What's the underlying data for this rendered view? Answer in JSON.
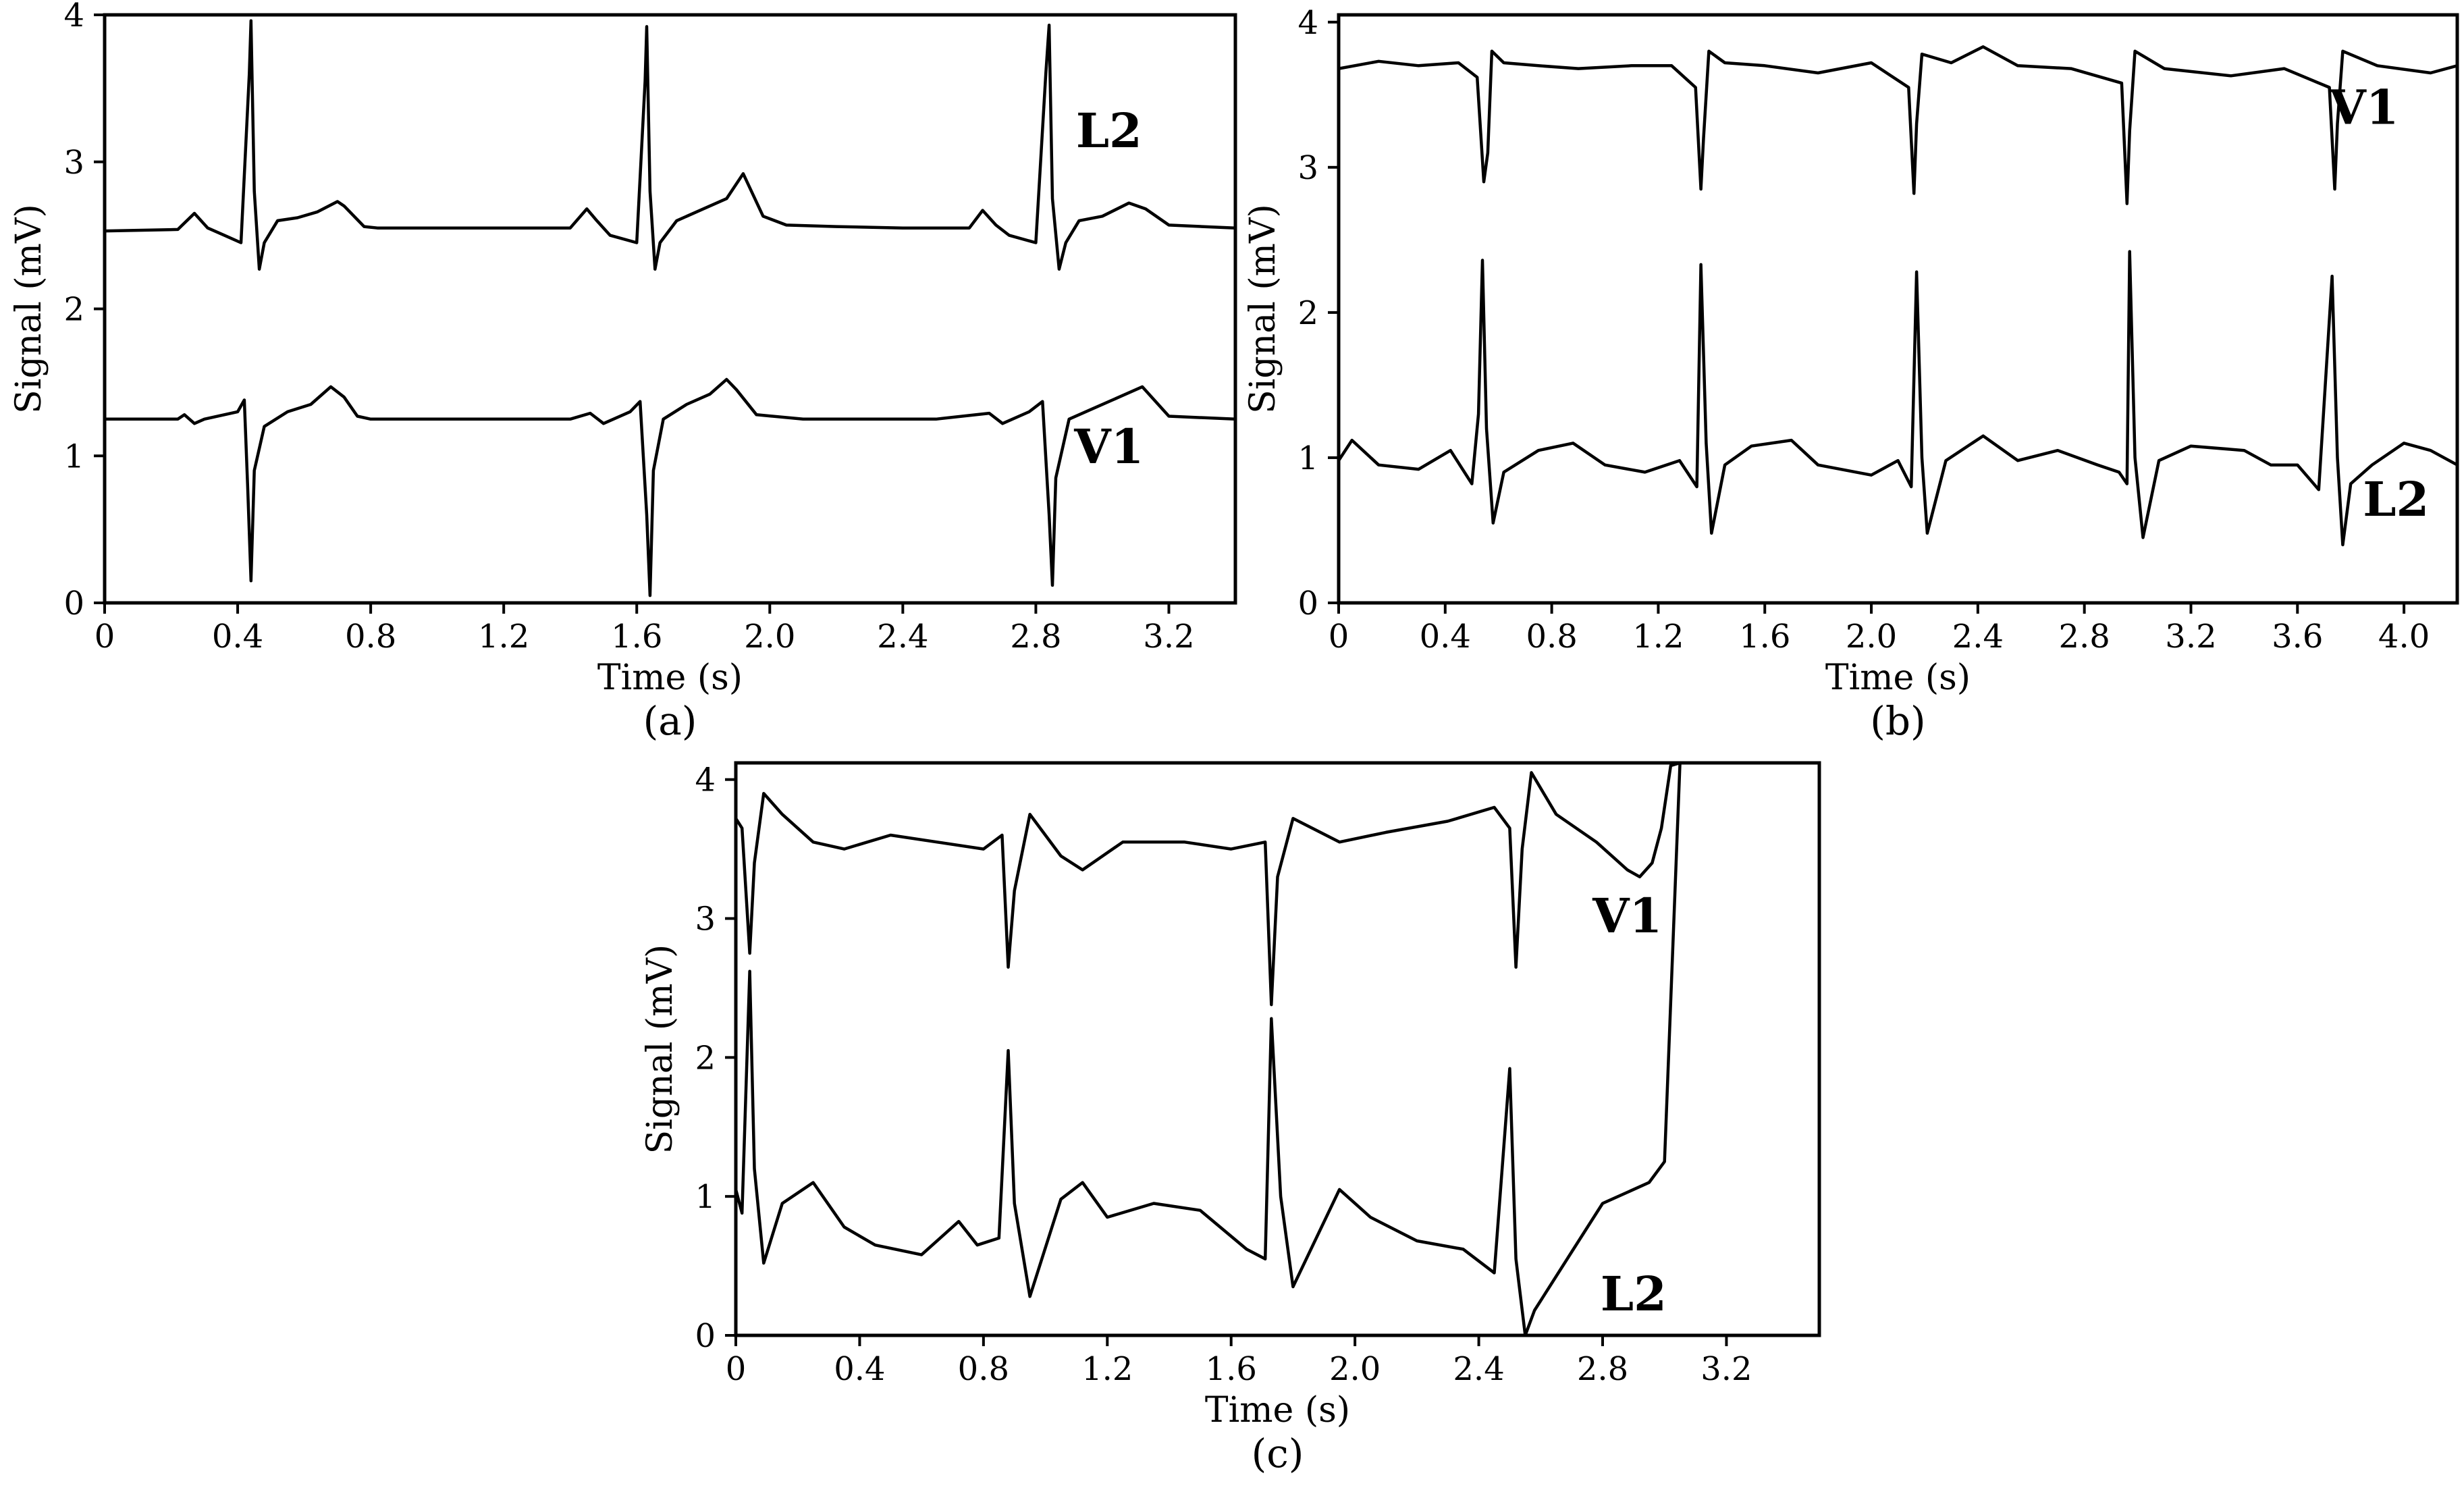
{
  "chart_data": [
    {
      "type": "line",
      "panel_label": "(a)",
      "xlabel": "Time (s)",
      "ylabel": "Signal (mV)",
      "xlim": [
        0,
        3.4
      ],
      "ylim": [
        0,
        4
      ],
      "x_ticks": [
        "0",
        "0.4",
        "0.8",
        "1.2",
        "1.6",
        "2.0",
        "2.4",
        "2.8",
        "3.2"
      ],
      "x_tick_values": [
        0,
        0.4,
        0.8,
        1.2,
        1.6,
        2.0,
        2.4,
        2.8,
        3.2
      ],
      "y_ticks": [
        "0",
        "1",
        "2",
        "3",
        "4"
      ],
      "y_tick_values": [
        0,
        1,
        2,
        3,
        4
      ],
      "series": [
        {
          "name": "L2",
          "label_at": [
            3.02,
            3.1
          ],
          "x": [
            0,
            0.22,
            0.27,
            0.31,
            0.36,
            0.41,
            0.435,
            0.44,
            0.45,
            0.465,
            0.48,
            0.52,
            0.58,
            0.64,
            0.7,
            0.72,
            0.78,
            0.82,
            1.0,
            1.2,
            1.4,
            1.45,
            1.48,
            1.52,
            1.6,
            1.625,
            1.63,
            1.64,
            1.655,
            1.67,
            1.72,
            1.8,
            1.87,
            1.92,
            1.98,
            2.05,
            2.2,
            2.4,
            2.6,
            2.64,
            2.68,
            2.72,
            2.8,
            2.83,
            2.84,
            2.85,
            2.87,
            2.89,
            2.93,
            3.0,
            3.08,
            3.13,
            3.2,
            3.3,
            3.4
          ],
          "y": [
            2.53,
            2.54,
            2.65,
            2.55,
            2.5,
            2.45,
            3.6,
            3.96,
            2.8,
            2.27,
            2.45,
            2.6,
            2.62,
            2.66,
            2.73,
            2.7,
            2.56,
            2.55,
            2.55,
            2.55,
            2.55,
            2.68,
            2.6,
            2.5,
            2.45,
            3.55,
            3.92,
            2.8,
            2.27,
            2.45,
            2.6,
            2.68,
            2.75,
            2.92,
            2.63,
            2.57,
            2.56,
            2.55,
            2.55,
            2.67,
            2.57,
            2.5,
            2.45,
            3.6,
            3.93,
            2.75,
            2.27,
            2.45,
            2.6,
            2.63,
            2.72,
            2.68,
            2.57,
            2.56,
            2.55
          ]
        },
        {
          "name": "V1",
          "label_at": [
            3.02,
            0.95
          ],
          "x": [
            0,
            0.22,
            0.24,
            0.27,
            0.3,
            0.4,
            0.42,
            0.43,
            0.44,
            0.45,
            0.48,
            0.55,
            0.62,
            0.68,
            0.72,
            0.76,
            0.8,
            1.0,
            1.2,
            1.4,
            1.46,
            1.5,
            1.58,
            1.61,
            1.63,
            1.64,
            1.65,
            1.68,
            1.75,
            1.82,
            1.87,
            1.9,
            1.96,
            2.1,
            2.3,
            2.5,
            2.66,
            2.7,
            2.78,
            2.82,
            2.84,
            2.85,
            2.86,
            2.9,
            2.97,
            3.05,
            3.12,
            3.2,
            3.4
          ],
          "y": [
            1.25,
            1.25,
            1.28,
            1.22,
            1.25,
            1.3,
            1.38,
            0.8,
            0.15,
            0.9,
            1.2,
            1.3,
            1.35,
            1.47,
            1.4,
            1.27,
            1.25,
            1.25,
            1.25,
            1.25,
            1.29,
            1.22,
            1.3,
            1.37,
            0.6,
            0.05,
            0.9,
            1.25,
            1.35,
            1.42,
            1.52,
            1.45,
            1.28,
            1.25,
            1.25,
            1.25,
            1.29,
            1.22,
            1.3,
            1.37,
            0.6,
            0.12,
            0.85,
            1.25,
            1.32,
            1.4,
            1.47,
            1.27,
            1.25
          ]
        }
      ]
    },
    {
      "type": "line",
      "panel_label": "(b)",
      "xlabel": "Time (s)",
      "ylabel": "Signal (mV)",
      "xlim": [
        0,
        4.2
      ],
      "ylim": [
        0,
        4.05
      ],
      "x_ticks": [
        "0",
        "0.4",
        "0.8",
        "1.2",
        "1.6",
        "2.0",
        "2.4",
        "2.8",
        "3.2",
        "3.6",
        "4.0"
      ],
      "x_tick_values": [
        0,
        0.4,
        0.8,
        1.2,
        1.6,
        2.0,
        2.4,
        2.8,
        3.2,
        3.6,
        4.0
      ],
      "y_ticks": [
        "0",
        "1",
        "2",
        "3",
        "4"
      ],
      "y_tick_values": [
        0,
        1,
        2,
        3,
        4
      ],
      "series": [
        {
          "name": "V1",
          "label_at": [
            3.85,
            3.3
          ],
          "x": [
            0,
            0.15,
            0.3,
            0.45,
            0.52,
            0.545,
            0.56,
            0.575,
            0.62,
            0.75,
            0.9,
            1.1,
            1.25,
            1.34,
            1.36,
            1.37,
            1.39,
            1.45,
            1.6,
            1.8,
            2.0,
            2.14,
            2.16,
            2.17,
            2.19,
            2.3,
            2.42,
            2.55,
            2.75,
            2.94,
            2.96,
            2.97,
            2.99,
            3.1,
            3.35,
            3.55,
            3.72,
            3.74,
            3.75,
            3.77,
            3.9,
            4.1,
            4.2
          ],
          "y": [
            3.68,
            3.73,
            3.7,
            3.72,
            3.62,
            2.9,
            3.1,
            3.8,
            3.72,
            3.7,
            3.68,
            3.7,
            3.7,
            3.55,
            2.85,
            3.2,
            3.8,
            3.72,
            3.7,
            3.65,
            3.72,
            3.55,
            2.82,
            3.3,
            3.78,
            3.72,
            3.83,
            3.7,
            3.68,
            3.58,
            2.75,
            3.25,
            3.8,
            3.68,
            3.63,
            3.68,
            3.55,
            2.85,
            3.3,
            3.8,
            3.7,
            3.65,
            3.7
          ]
        },
        {
          "name": "L2",
          "label_at": [
            3.97,
            0.6
          ],
          "x": [
            0,
            0.05,
            0.15,
            0.3,
            0.42,
            0.5,
            0.525,
            0.54,
            0.555,
            0.58,
            0.62,
            0.75,
            0.88,
            1.0,
            1.15,
            1.28,
            1.345,
            1.36,
            1.38,
            1.4,
            1.45,
            1.55,
            1.7,
            1.8,
            2.0,
            2.1,
            2.15,
            2.17,
            2.19,
            2.21,
            2.28,
            2.42,
            2.55,
            2.7,
            2.85,
            2.93,
            2.96,
            2.97,
            2.99,
            3.02,
            3.08,
            3.2,
            3.4,
            3.5,
            3.6,
            3.68,
            3.73,
            3.75,
            3.77,
            3.8,
            3.88,
            4.0,
            4.1,
            4.2
          ],
          "y": [
            0.98,
            1.12,
            0.95,
            0.92,
            1.05,
            0.82,
            1.3,
            2.36,
            1.2,
            0.55,
            0.9,
            1.05,
            1.1,
            0.95,
            0.9,
            0.98,
            0.8,
            2.33,
            1.1,
            0.48,
            0.95,
            1.08,
            1.12,
            0.95,
            0.88,
            0.98,
            0.8,
            2.28,
            1.0,
            0.48,
            0.98,
            1.15,
            0.98,
            1.05,
            0.95,
            0.9,
            0.82,
            2.42,
            1.0,
            0.45,
            0.98,
            1.08,
            1.05,
            0.95,
            0.95,
            0.78,
            2.25,
            1.0,
            0.4,
            0.82,
            0.95,
            1.1,
            1.05,
            0.95
          ]
        }
      ]
    },
    {
      "type": "line",
      "panel_label": "(c)",
      "xlabel": "Time (s)",
      "ylabel": "Signal (mV)",
      "xlim": [
        0,
        3.5
      ],
      "ylim": [
        0,
        4.12
      ],
      "x_ticks": [
        "0",
        "0.4",
        "0.8",
        "1.2",
        "1.6",
        "2.0",
        "2.4",
        "2.8",
        "3.2"
      ],
      "x_tick_values": [
        0,
        0.4,
        0.8,
        1.2,
        1.6,
        2.0,
        2.4,
        2.8,
        3.2
      ],
      "y_ticks": [
        "0",
        "1",
        "2",
        "3",
        "4"
      ],
      "y_tick_values": [
        0,
        1,
        2,
        3,
        4
      ],
      "series": [
        {
          "name": "V1",
          "label_at": [
            2.88,
            2.9
          ],
          "x": [
            0,
            0.02,
            0.045,
            0.06,
            0.09,
            0.15,
            0.25,
            0.35,
            0.5,
            0.65,
            0.8,
            0.86,
            0.88,
            0.9,
            0.95,
            1.05,
            1.12,
            1.25,
            1.45,
            1.6,
            1.71,
            1.73,
            1.75,
            1.8,
            1.95,
            2.1,
            2.3,
            2.45,
            2.5,
            2.52,
            2.54,
            2.57,
            2.65,
            2.78,
            2.88,
            2.92,
            2.96,
            2.99,
            3.02,
            3.05
          ],
          "y": [
            3.72,
            3.65,
            2.75,
            3.4,
            3.9,
            3.75,
            3.55,
            3.5,
            3.6,
            3.55,
            3.5,
            3.6,
            2.65,
            3.2,
            3.75,
            3.45,
            3.35,
            3.55,
            3.55,
            3.5,
            3.55,
            2.38,
            3.3,
            3.72,
            3.55,
            3.62,
            3.7,
            3.8,
            3.65,
            2.65,
            3.5,
            4.05,
            3.75,
            3.55,
            3.35,
            3.3,
            3.4,
            3.65,
            4.1,
            4.12
          ]
        },
        {
          "name": "L2",
          "label_at": [
            2.9,
            0.18
          ],
          "x": [
            0,
            0.02,
            0.045,
            0.06,
            0.09,
            0.15,
            0.25,
            0.35,
            0.45,
            0.6,
            0.72,
            0.78,
            0.85,
            0.88,
            0.9,
            0.95,
            1.05,
            1.12,
            1.2,
            1.35,
            1.5,
            1.65,
            1.71,
            1.73,
            1.76,
            1.8,
            1.95,
            2.05,
            2.2,
            2.35,
            2.45,
            2.5,
            2.52,
            2.55,
            2.58,
            2.7,
            2.8,
            2.95,
            3.0,
            3.05
          ],
          "y": [
            1.05,
            0.88,
            2.62,
            1.2,
            0.52,
            0.95,
            1.1,
            0.78,
            0.65,
            0.58,
            0.82,
            0.65,
            0.7,
            2.05,
            0.95,
            0.28,
            0.98,
            1.1,
            0.85,
            0.95,
            0.9,
            0.62,
            0.55,
            2.28,
            1.0,
            0.35,
            1.05,
            0.85,
            0.68,
            0.62,
            0.45,
            1.92,
            0.55,
            0.0,
            0.18,
            0.6,
            0.95,
            1.1,
            1.25,
            4.12
          ]
        }
      ]
    }
  ]
}
